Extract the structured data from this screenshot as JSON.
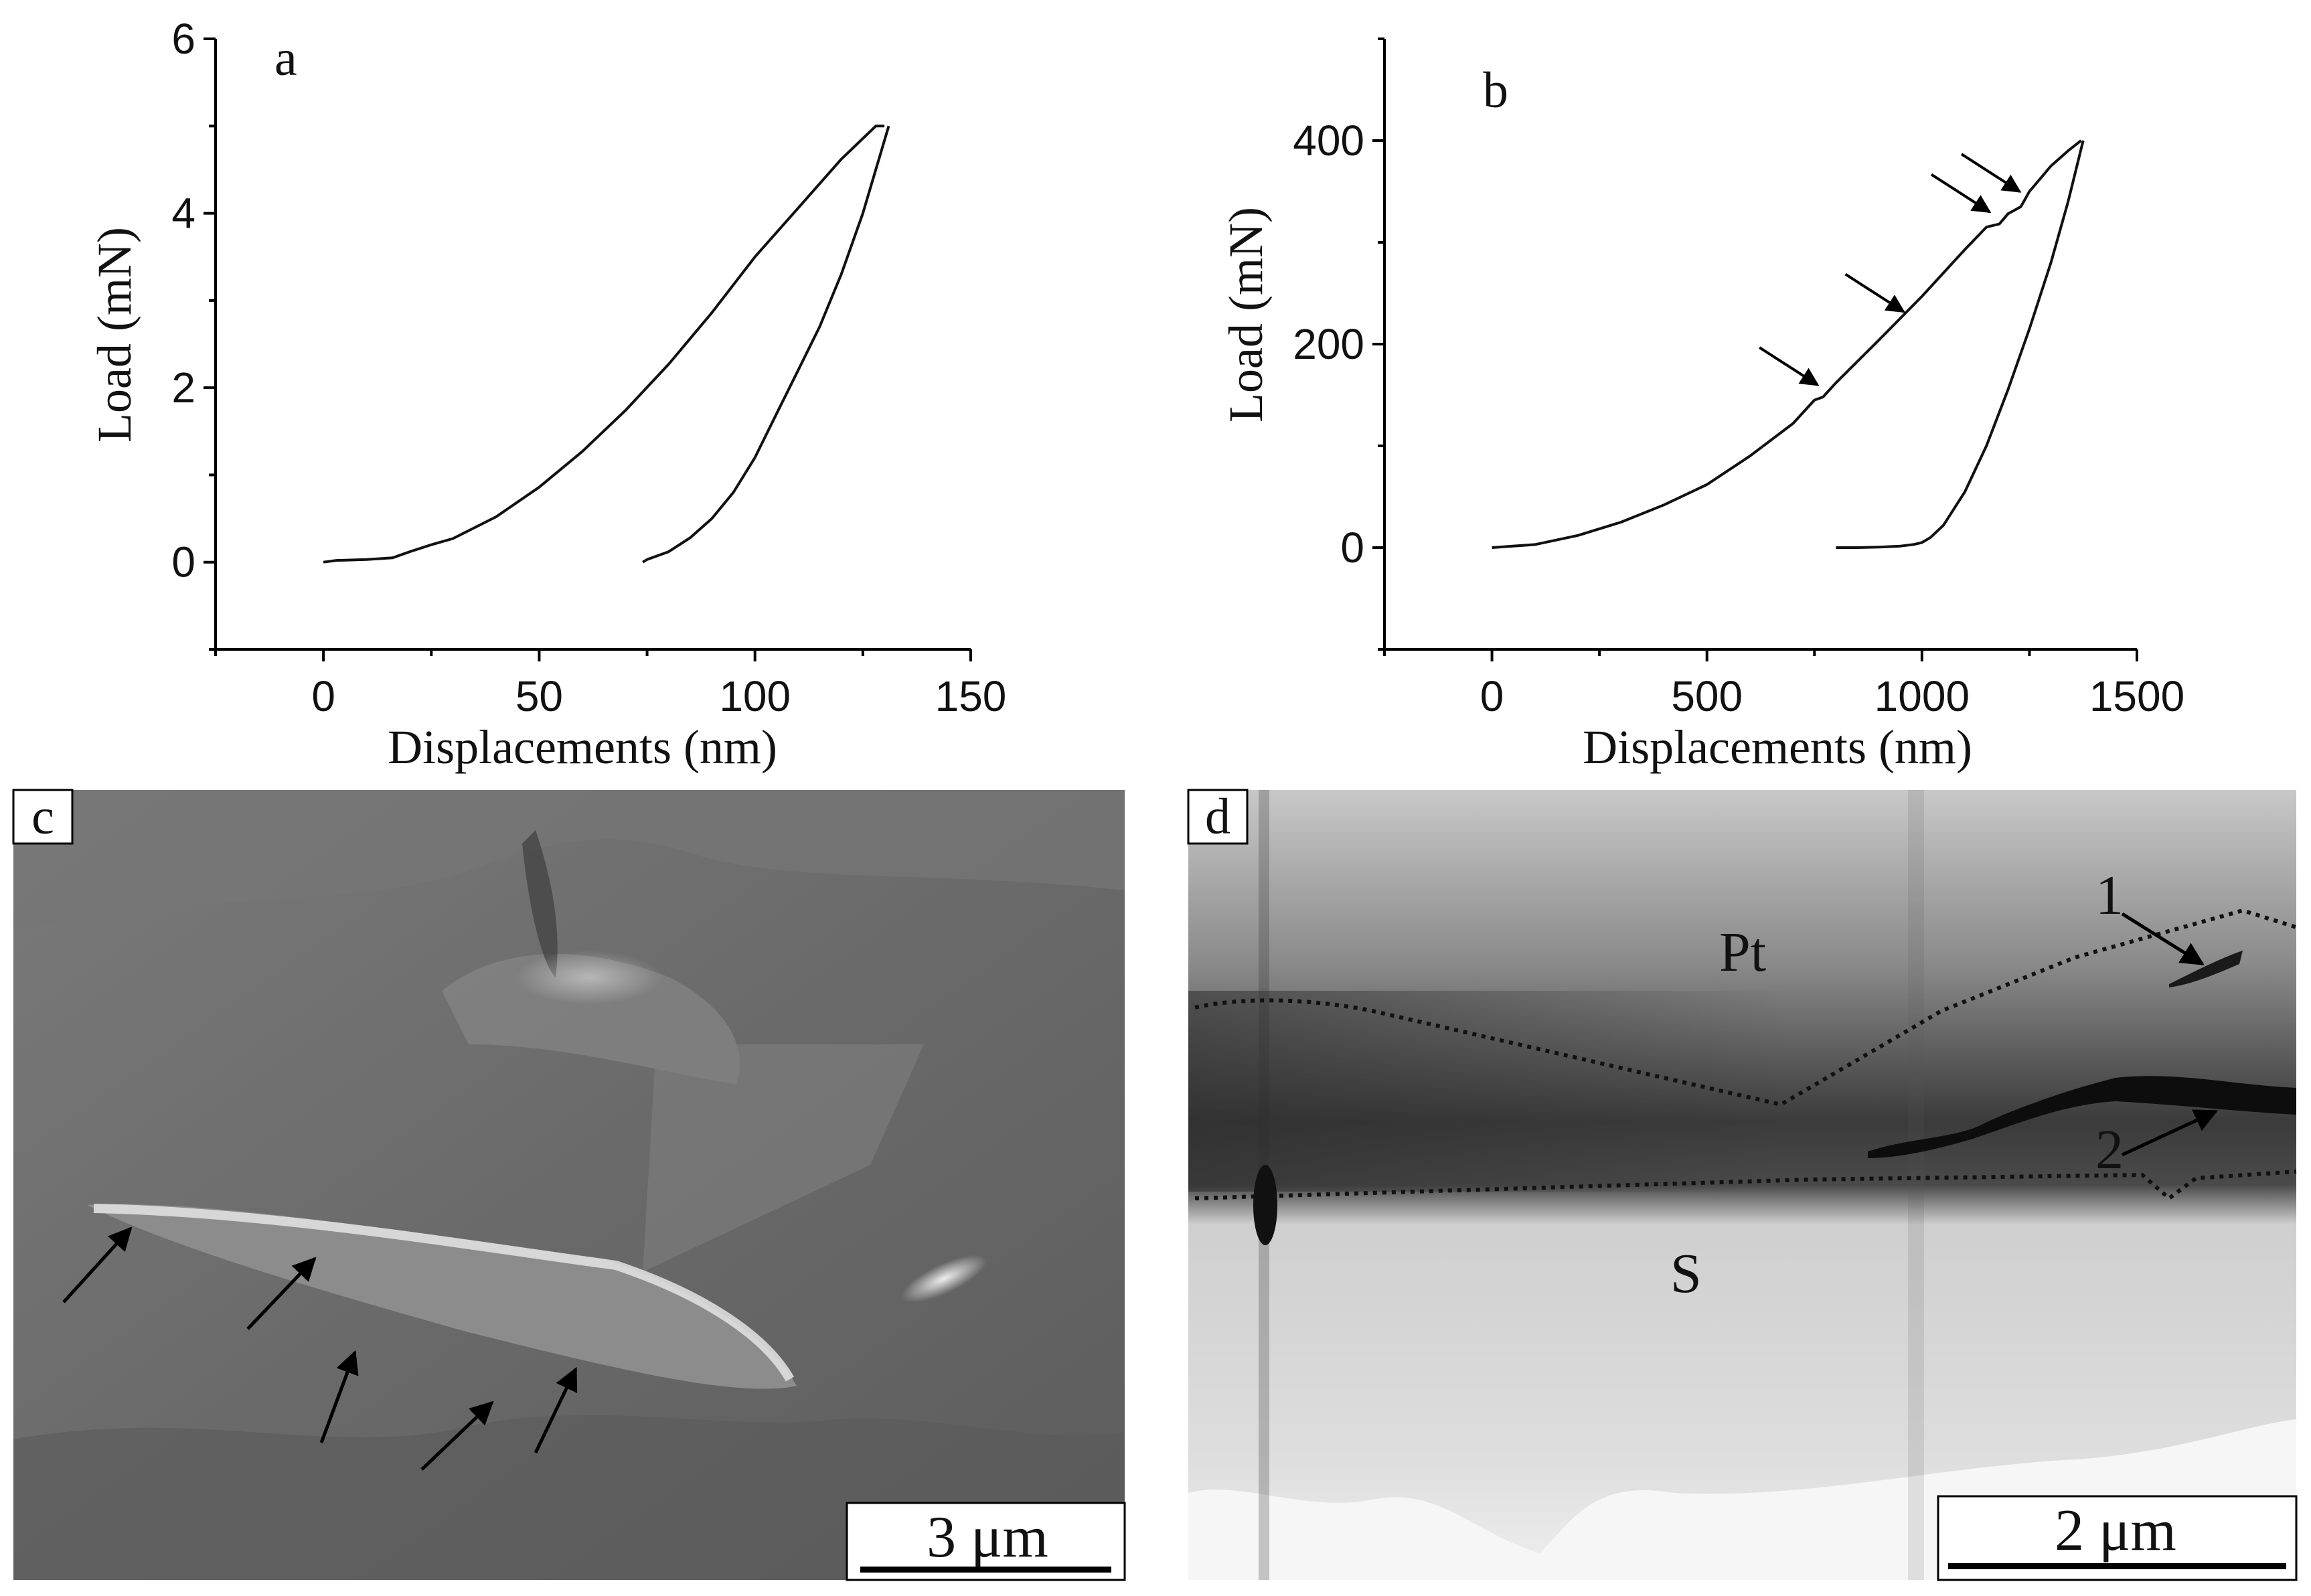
{
  "chart_data": [
    {
      "panel": "a",
      "type": "line",
      "xlabel": "Displacements (nm)",
      "ylabel": "Load (mN)",
      "xlim": [
        -25,
        150
      ],
      "ylim": [
        -1,
        6
      ],
      "xticks": [
        "0",
        "50",
        "100",
        "150"
      ],
      "yticks": [
        "0",
        "2",
        "4",
        "6"
      ],
      "series": [
        {
          "segment": "loading",
          "x": [
            0,
            3,
            10,
            16,
            20,
            25,
            30,
            40,
            50,
            60,
            70,
            80,
            90,
            100,
            110,
            120,
            128,
            130
          ],
          "y": [
            0,
            0.02,
            0.03,
            0.05,
            0.12,
            0.2,
            0.27,
            0.52,
            0.86,
            1.27,
            1.74,
            2.27,
            2.86,
            3.5,
            4.06,
            4.62,
            5.0,
            5.0
          ]
        },
        {
          "segment": "unloading",
          "x": [
            131,
            128,
            125,
            120,
            115,
            110,
            105,
            100,
            95,
            90,
            85,
            80,
            75,
            74
          ],
          "y": [
            5.0,
            4.5,
            4.0,
            3.3,
            2.7,
            2.2,
            1.7,
            1.2,
            0.8,
            0.5,
            0.28,
            0.12,
            0.03,
            0
          ]
        }
      ]
    },
    {
      "panel": "b",
      "type": "line",
      "xlabel": "Displacements (nm)",
      "ylabel": "Load (mN)",
      "xlim": [
        -250,
        1500
      ],
      "ylim": [
        -100,
        500
      ],
      "xticks": [
        "0",
        "500",
        "1000",
        "1500"
      ],
      "yticks": [
        "0",
        "200",
        "400"
      ],
      "series": [
        {
          "segment": "loading",
          "x": [
            0,
            100,
            200,
            300,
            400,
            500,
            600,
            700,
            750,
            770,
            800,
            900,
            1000,
            1100,
            1150,
            1180,
            1200,
            1230,
            1250,
            1300,
            1340,
            1370
          ],
          "y": [
            0,
            3,
            12,
            25,
            42,
            62,
            90,
            122,
            145,
            148,
            162,
            204,
            247,
            293,
            315,
            318,
            328,
            335,
            350,
            375,
            390,
            400
          ]
        },
        {
          "segment": "unloading",
          "x": [
            1375,
            1340,
            1300,
            1250,
            1200,
            1150,
            1100,
            1050,
            1020,
            1000,
            980,
            950,
            900,
            850,
            800
          ],
          "y": [
            400,
            340,
            280,
            215,
            155,
            100,
            55,
            22,
            10,
            5,
            3,
            1.5,
            0.5,
            0,
            0
          ]
        }
      ],
      "annotations": [
        {
          "type": "arrow",
          "x": 770,
          "y": 148
        },
        {
          "type": "arrow",
          "x": 970,
          "y": 220
        },
        {
          "type": "arrow",
          "x": 1170,
          "y": 318
        },
        {
          "type": "arrow",
          "x": 1240,
          "y": 338
        }
      ]
    }
  ],
  "panels": {
    "a": {
      "letter": "a"
    },
    "b": {
      "letter": "b"
    },
    "c": {
      "letter": "c",
      "scale_bar": "3 μm"
    },
    "d": {
      "letter": "d",
      "scale_bar": "2 μm",
      "labels": [
        "Pt",
        "S",
        "1",
        "2"
      ]
    }
  },
  "colors": {
    "line": "#111111",
    "sem_base": "#6b6b6b",
    "tem_dark": "#3a3a3a",
    "tem_light": "#d8d8d8"
  }
}
